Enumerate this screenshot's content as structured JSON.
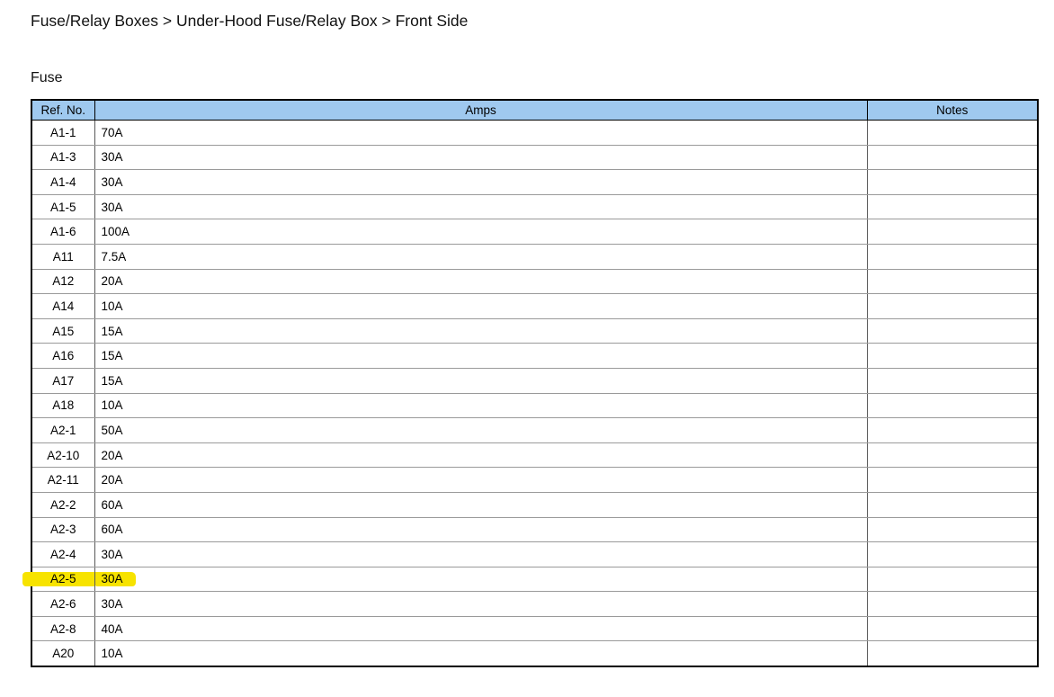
{
  "breadcrumb": {
    "text": "Fuse/Relay Boxes > Under-Hood Fuse/Relay Box > Front Side"
  },
  "section_title": "Fuse",
  "table": {
    "columns": [
      "Ref. No.",
      "Amps",
      "Notes"
    ],
    "row_keys": [
      "ref",
      "amps",
      "notes"
    ],
    "highlighted_ref": "A2-5",
    "rows": [
      {
        "ref": "A1-1",
        "amps": "70A",
        "notes": ""
      },
      {
        "ref": "A1-3",
        "amps": "30A",
        "notes": ""
      },
      {
        "ref": "A1-4",
        "amps": "30A",
        "notes": ""
      },
      {
        "ref": "A1-5",
        "amps": "30A",
        "notes": ""
      },
      {
        "ref": "A1-6",
        "amps": "100A",
        "notes": ""
      },
      {
        "ref": "A11",
        "amps": "7.5A",
        "notes": ""
      },
      {
        "ref": "A12",
        "amps": "20A",
        "notes": ""
      },
      {
        "ref": "A14",
        "amps": "10A",
        "notes": ""
      },
      {
        "ref": "A15",
        "amps": "15A",
        "notes": ""
      },
      {
        "ref": "A16",
        "amps": "15A",
        "notes": ""
      },
      {
        "ref": "A17",
        "amps": "15A",
        "notes": ""
      },
      {
        "ref": "A18",
        "amps": "10A",
        "notes": ""
      },
      {
        "ref": "A2-1",
        "amps": "50A",
        "notes": ""
      },
      {
        "ref": "A2-10",
        "amps": "20A",
        "notes": ""
      },
      {
        "ref": "A2-11",
        "amps": "20A",
        "notes": ""
      },
      {
        "ref": "A2-2",
        "amps": "60A",
        "notes": ""
      },
      {
        "ref": "A2-3",
        "amps": "60A",
        "notes": ""
      },
      {
        "ref": "A2-4",
        "amps": "30A",
        "notes": ""
      },
      {
        "ref": "A2-5",
        "amps": "30A",
        "notes": ""
      },
      {
        "ref": "A2-6",
        "amps": "30A",
        "notes": ""
      },
      {
        "ref": "A2-8",
        "amps": "40A",
        "notes": ""
      },
      {
        "ref": "A20",
        "amps": "10A",
        "notes": ""
      }
    ]
  },
  "colors": {
    "header_bg": "#9FC9EF",
    "highlight": "#F7E300"
  }
}
